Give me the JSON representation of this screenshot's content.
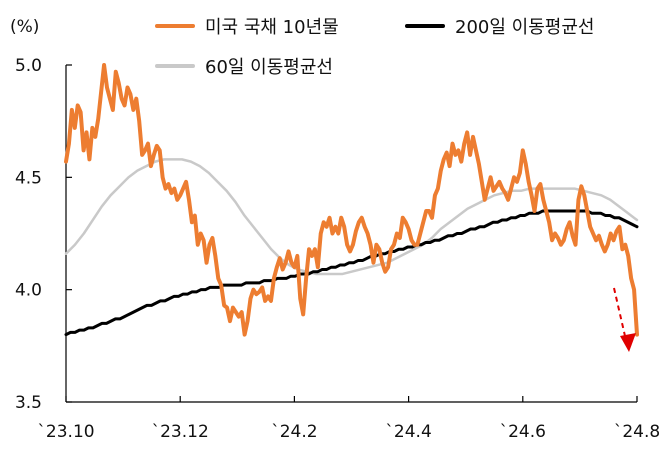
{
  "chart_data": {
    "type": "line",
    "unit": "(%)",
    "ylim": [
      3.5,
      5.0
    ],
    "yticks": [
      "5.0",
      "4.5",
      "4.0",
      "3.5"
    ],
    "ytick_values": [
      5.0,
      4.5,
      4.0,
      3.5
    ],
    "x_tick_labels": [
      "`23.10",
      "`23.12",
      "`24.2",
      "`24.4",
      "`24.6",
      "`24.8"
    ],
    "legend": [
      "미국 국채 10년물",
      "200일 이동평균선",
      "60일 이동평균선"
    ],
    "colors": {
      "us10y": "#ED7D31",
      "ma200": "#000000",
      "ma60": "#C9C9C9",
      "arrow": "#E00000"
    },
    "series": [
      {
        "name": "미국 국채 10년물",
        "color": "#ED7D31",
        "values": [
          4.57,
          4.65,
          4.8,
          4.72,
          4.82,
          4.79,
          4.62,
          4.7,
          4.58,
          4.72,
          4.68,
          4.76,
          4.88,
          5.0,
          4.9,
          4.85,
          4.8,
          4.97,
          4.92,
          4.85,
          4.82,
          4.9,
          4.87,
          4.8,
          4.85,
          4.75,
          4.6,
          4.62,
          4.65,
          4.55,
          4.6,
          4.64,
          4.62,
          4.5,
          4.45,
          4.47,
          4.43,
          4.45,
          4.4,
          4.42,
          4.45,
          4.48,
          4.4,
          4.3,
          4.33,
          4.2,
          4.25,
          4.22,
          4.12,
          4.2,
          4.23,
          4.15,
          4.05,
          4.02,
          3.93,
          3.92,
          3.86,
          3.92,
          3.9,
          3.88,
          3.9,
          3.8,
          3.86,
          3.96,
          4.0,
          3.98,
          3.99,
          4.01,
          3.95,
          3.97,
          3.95,
          4.05,
          4.1,
          4.14,
          4.09,
          4.12,
          4.17,
          4.12,
          4.1,
          4.15,
          3.96,
          3.89,
          4.05,
          4.18,
          4.15,
          4.18,
          4.1,
          4.25,
          4.3,
          4.28,
          4.32,
          4.25,
          4.28,
          4.25,
          4.32,
          4.28,
          4.2,
          4.17,
          4.2,
          4.26,
          4.3,
          4.32,
          4.28,
          4.25,
          4.2,
          4.12,
          4.2,
          4.18,
          4.12,
          4.08,
          4.1,
          4.18,
          4.2,
          4.25,
          4.23,
          4.32,
          4.3,
          4.27,
          4.22,
          4.2,
          4.2,
          4.25,
          4.3,
          4.35,
          4.35,
          4.32,
          4.42,
          4.45,
          4.53,
          4.58,
          4.61,
          4.55,
          4.65,
          4.6,
          4.62,
          4.57,
          4.65,
          4.7,
          4.6,
          4.68,
          4.62,
          4.56,
          4.48,
          4.4,
          4.45,
          4.5,
          4.44,
          4.46,
          4.48,
          4.45,
          4.43,
          4.4,
          4.45,
          4.5,
          4.48,
          4.52,
          4.62,
          4.56,
          4.48,
          4.42,
          4.35,
          4.45,
          4.47,
          4.4,
          4.35,
          4.3,
          4.22,
          4.25,
          4.23,
          4.2,
          4.22,
          4.27,
          4.3,
          4.24,
          4.2,
          4.4,
          4.46,
          4.42,
          4.35,
          4.28,
          4.25,
          4.22,
          4.24,
          4.2,
          4.17,
          4.2,
          4.25,
          4.22,
          4.26,
          4.28,
          4.18,
          4.2,
          4.15,
          4.05,
          4.0,
          3.8
        ]
      },
      {
        "name": "200일 이동평균선",
        "color": "#000000",
        "values": [
          3.8,
          3.81,
          3.81,
          3.82,
          3.82,
          3.83,
          3.83,
          3.84,
          3.85,
          3.85,
          3.86,
          3.87,
          3.87,
          3.88,
          3.89,
          3.9,
          3.91,
          3.92,
          3.93,
          3.93,
          3.94,
          3.95,
          3.95,
          3.96,
          3.97,
          3.97,
          3.98,
          3.98,
          3.99,
          3.99,
          4.0,
          4.0,
          4.01,
          4.01,
          4.01,
          4.02,
          4.02,
          4.02,
          4.02,
          4.02,
          4.03,
          4.03,
          4.03,
          4.03,
          4.04,
          4.04,
          4.04,
          4.05,
          4.05,
          4.05,
          4.06,
          4.06,
          4.07,
          4.07,
          4.07,
          4.08,
          4.08,
          4.09,
          4.09,
          4.1,
          4.1,
          4.11,
          4.11,
          4.12,
          4.12,
          4.13,
          4.13,
          4.14,
          4.15,
          4.15,
          4.16,
          4.16,
          4.17,
          4.17,
          4.18,
          4.18,
          4.19,
          4.19,
          4.2,
          4.2,
          4.21,
          4.21,
          4.22,
          4.22,
          4.23,
          4.24,
          4.24,
          4.25,
          4.25,
          4.26,
          4.27,
          4.27,
          4.28,
          4.28,
          4.29,
          4.3,
          4.3,
          4.31,
          4.31,
          4.32,
          4.32,
          4.33,
          4.33,
          4.34,
          4.34,
          4.34,
          4.35,
          4.35,
          4.35,
          4.35,
          4.35,
          4.35,
          4.35,
          4.35,
          4.35,
          4.35,
          4.35,
          4.34,
          4.34,
          4.34,
          4.33,
          4.33,
          4.32,
          4.32,
          4.31,
          4.3,
          4.29,
          4.28
        ]
      },
      {
        "name": "60일 이동평균선",
        "color": "#C9C9C9",
        "values": [
          4.16,
          4.2,
          4.25,
          4.31,
          4.37,
          4.42,
          4.46,
          4.5,
          4.53,
          4.55,
          4.57,
          4.58,
          4.58,
          4.58,
          4.57,
          4.55,
          4.52,
          4.48,
          4.44,
          4.39,
          4.33,
          4.28,
          4.23,
          4.18,
          4.14,
          4.11,
          4.09,
          4.08,
          4.07,
          4.07,
          4.07,
          4.07,
          4.08,
          4.09,
          4.1,
          4.11,
          4.12,
          4.14,
          4.16,
          4.18,
          4.2,
          4.23,
          4.27,
          4.3,
          4.33,
          4.36,
          4.38,
          4.4,
          4.42,
          4.43,
          4.44,
          4.44,
          4.45,
          4.45,
          4.45,
          4.45,
          4.45,
          4.45,
          4.44,
          4.43,
          4.42,
          4.4,
          4.37,
          4.34,
          4.31
        ]
      }
    ],
    "annotation": {
      "type": "arrow",
      "color": "#E00000",
      "style": "dashed"
    }
  }
}
